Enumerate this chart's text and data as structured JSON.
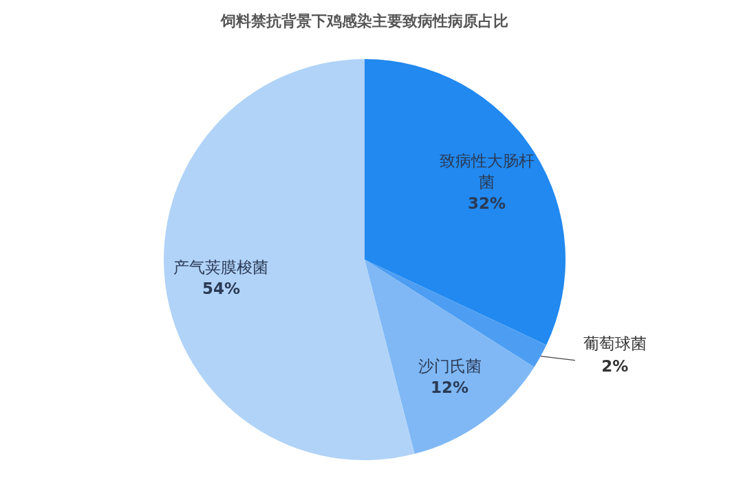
{
  "chart_data": {
    "type": "pie",
    "title": "饲料禁抗背景下鸡感染主要致病性病原占比",
    "categories": [
      "致病性大肠杆菌",
      "葡萄球菌",
      "沙门氏菌",
      "产气荚膜梭菌"
    ],
    "values": [
      32,
      2,
      12,
      54
    ],
    "colors": [
      "#2189f0",
      "#4d9ef2",
      "#7fb8f5",
      "#b1d3f8"
    ],
    "value_labels": [
      "32%",
      "2%",
      "12%",
      "54%"
    ]
  }
}
